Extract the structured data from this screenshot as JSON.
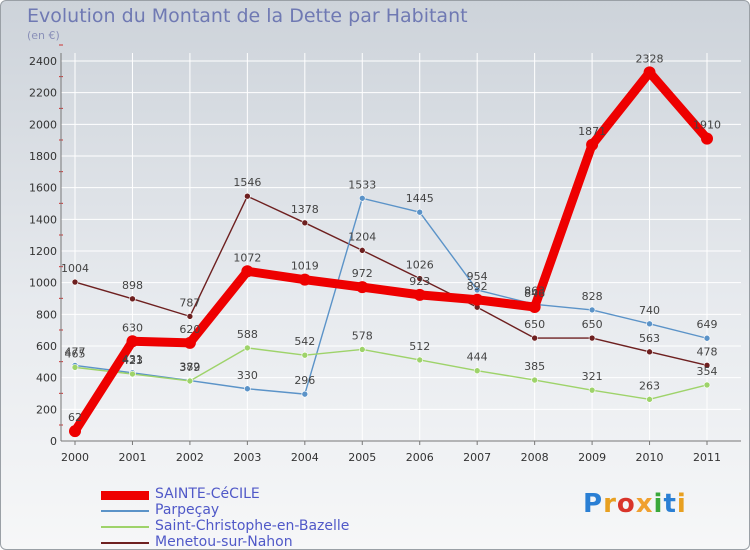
{
  "header": {
    "title": "Evolution du Montant de la Dette par Habitant",
    "subtitle": "(en €)"
  },
  "logo": {
    "text": "Proxiti",
    "colors": [
      "#2a7fd4",
      "#e8a020",
      "#d9342a",
      "#f0a030",
      "#3aa83a",
      "#2a7fd4",
      "#e8a020"
    ]
  },
  "chart_data": {
    "type": "line",
    "x": [
      "2000",
      "2001",
      "2002",
      "2003",
      "2004",
      "2005",
      "2006",
      "2007",
      "2008",
      "2009",
      "2010",
      "2011"
    ],
    "ylim": [
      0,
      2400
    ],
    "yticks": [
      0,
      200,
      400,
      600,
      800,
      1000,
      1200,
      1400,
      1600,
      1800,
      2000,
      2200,
      2400
    ],
    "grid": true,
    "legend": "bottom",
    "series": [
      {
        "name": "Menetou-sur-Nahon",
        "color": "#6e2020",
        "values": [
          1004,
          898,
          787,
          1546,
          1378,
          1204,
          1026,
          845,
          650,
          650,
          563,
          478
        ],
        "labels": [
          "1004",
          "898",
          "787",
          "1546",
          "1378",
          "1204",
          "1026",
          "",
          "650",
          "650",
          "563",
          "478"
        ]
      },
      {
        "name": "Parpeçay",
        "color": "#5b93c8",
        "values": [
          477,
          431,
          382,
          330,
          296,
          1533,
          1445,
          954,
          863,
          828,
          740,
          649
        ],
        "labels": [
          "477",
          "431",
          "382",
          "330",
          "296",
          "1533",
          "1445",
          "954",
          "863",
          "828",
          "740",
          "649"
        ]
      },
      {
        "name": "Saint-Christophe-en-Bazelle",
        "color": "#9ed36a",
        "values": [
          465,
          423,
          379,
          588,
          542,
          578,
          512,
          444,
          385,
          321,
          263,
          354
        ],
        "labels": [
          "465",
          "423",
          "379",
          "588",
          "542",
          "578",
          "512",
          "444",
          "385",
          "321",
          "263",
          "354"
        ]
      },
      {
        "name": "SAINTE-CéCILE",
        "color": "#ee0000",
        "values": [
          62,
          630,
          620,
          1072,
          1019,
          972,
          923,
          892,
          846,
          1871,
          2328,
          1910
        ],
        "labels": [
          "62",
          "630",
          "620",
          "1072",
          "1019",
          "972",
          "923",
          "892",
          "846",
          "1871",
          "2328",
          "1910"
        ]
      }
    ]
  }
}
